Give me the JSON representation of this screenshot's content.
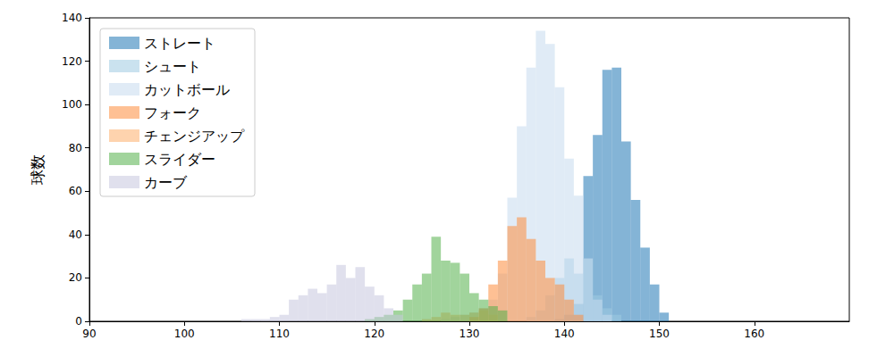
{
  "chart_data": {
    "type": "histogram",
    "ylabel": "球数",
    "xlim": [
      90,
      170
    ],
    "xticks": [
      90,
      100,
      110,
      120,
      130,
      140,
      150,
      160
    ],
    "ylim": [
      0,
      140
    ],
    "yticks": [
      0,
      20,
      40,
      60,
      80,
      100,
      120,
      140
    ],
    "grid": false,
    "legend": "upper left",
    "series": [
      {
        "name": "ストレート",
        "color": "#1f77b4",
        "bins": [
          139,
          140,
          141,
          142,
          143,
          144,
          145,
          146,
          147,
          148,
          149,
          150,
          151
        ],
        "values": [
          1,
          3,
          8,
          67,
          86,
          116,
          117,
          83,
          56,
          34,
          17,
          4
        ]
      },
      {
        "name": "シュート",
        "color": "#9ecae1",
        "bins": [
          136,
          137,
          138,
          139,
          140,
          141,
          142,
          143,
          144,
          145,
          146
        ],
        "values": [
          2,
          5,
          12,
          20,
          29,
          22,
          29,
          12,
          6,
          3
        ]
      },
      {
        "name": "カットボール",
        "color": "#c6dbef",
        "bins": [
          127,
          128,
          129,
          130,
          131,
          132,
          133,
          134,
          135,
          136,
          137,
          138,
          139,
          140,
          141,
          142,
          143,
          144,
          145
        ],
        "values": [
          1,
          2,
          3,
          4,
          6,
          10,
          22,
          57,
          90,
          117,
          134,
          128,
          108,
          75,
          58,
          29,
          10,
          3
        ]
      },
      {
        "name": "フォーク",
        "color": "#fd8d3c",
        "bins": [
          130,
          131,
          132,
          133,
          134,
          135,
          136,
          137,
          138,
          139,
          140,
          141,
          142
        ],
        "values": [
          2,
          6,
          17,
          28,
          44,
          48,
          38,
          28,
          20,
          17,
          10,
          3
        ]
      },
      {
        "name": "チェンジアップ",
        "color": "#fdae6b",
        "bins": [
          125,
          126,
          127,
          128,
          129,
          130,
          131,
          132,
          133
        ],
        "values": [
          1,
          2,
          4,
          3,
          3,
          4,
          5,
          3
        ]
      },
      {
        "name": "スライダー",
        "color": "#54b14a",
        "bins": [
          119,
          120,
          121,
          122,
          123,
          124,
          125,
          126,
          127,
          128,
          129,
          130,
          131,
          132,
          133,
          134
        ],
        "values": [
          1,
          2,
          3,
          5,
          10,
          17,
          22,
          39,
          28,
          27,
          22,
          13,
          10,
          7,
          5
        ]
      },
      {
        "name": "カーブ",
        "color": "#c7c7de",
        "bins": [
          106,
          107,
          108,
          109,
          110,
          111,
          112,
          113,
          114,
          115,
          116,
          117,
          118,
          119,
          120,
          121,
          122,
          123
        ],
        "values": [
          1,
          1,
          1,
          2,
          3,
          10,
          12,
          15,
          13,
          17,
          26,
          20,
          25,
          16,
          12,
          6,
          3
        ]
      }
    ]
  }
}
